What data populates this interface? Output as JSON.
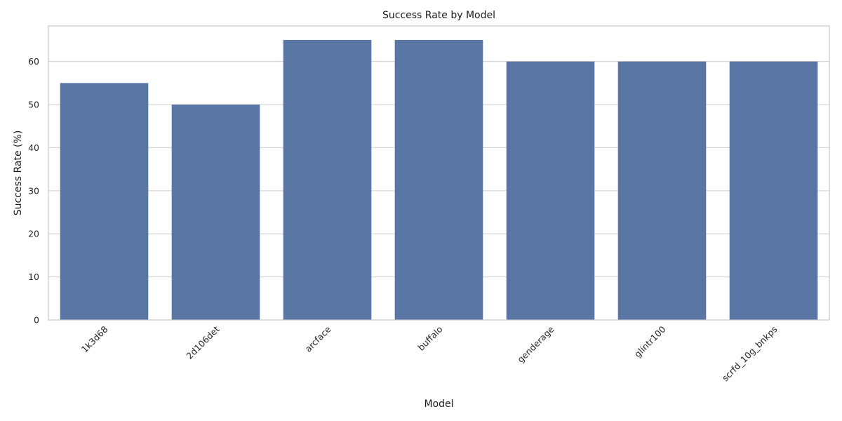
{
  "chart_data": {
    "type": "bar",
    "title": "Success Rate by Model",
    "xlabel": "Model",
    "ylabel": "Success Rate (%)",
    "categories": [
      "1k3d68",
      "2d106det",
      "arcface",
      "buffalo",
      "genderage",
      "glintr100",
      "scrfd_10g_bnkps"
    ],
    "values": [
      55,
      50,
      65,
      65,
      60,
      60,
      60
    ],
    "ylim": [
      0,
      68.25
    ],
    "yticks": [
      0,
      10,
      20,
      30,
      40,
      50,
      60
    ],
    "grid": "horizontal",
    "bar_color": "#5875a4",
    "xtick_rotation": 45
  }
}
